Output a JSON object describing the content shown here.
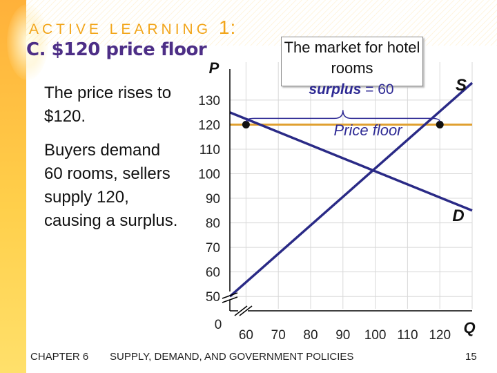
{
  "slide": {
    "kicker": "ACTIVE LEARNING",
    "kicker_number": "1:",
    "title": "C. $120 price floor",
    "paragraphs": [
      "The price rises to $120.",
      "Buyers demand 60 rooms, sellers supply 120, causing a surplus."
    ],
    "callout": "The market for hotel rooms",
    "surplus_prefix": "surplus",
    "surplus_suffix": " = 60",
    "footer_chapter": "CHAPTER 6",
    "footer_topic": "SUPPLY, DEMAND, AND GOVERNMENT POLICIES",
    "page_number": "15"
  },
  "colors": {
    "curve": "#2a2a86",
    "price_floor": "#e0a030",
    "kicker": "#f2a51a",
    "title": "#4d2e86",
    "grid": "#d8d8d8"
  },
  "chart_data": {
    "type": "line",
    "ylabel": "P",
    "xlabel": "Q",
    "origin_label": "0",
    "x_ticks": [
      60,
      70,
      80,
      90,
      100,
      110,
      120
    ],
    "y_ticks": [
      50,
      60,
      70,
      80,
      90,
      100,
      110,
      120,
      130
    ],
    "xlim": [
      55,
      130
    ],
    "ylim": [
      45,
      137
    ],
    "axis_breaks": true,
    "grid": true,
    "series": [
      {
        "name": "S",
        "x": [
          55,
          130
        ],
        "y": [
          50,
          137
        ]
      },
      {
        "name": "D",
        "x": [
          55,
          130
        ],
        "y": [
          125,
          85
        ]
      }
    ],
    "price_floor": {
      "label": "Price floor",
      "value": 120
    },
    "points": [
      {
        "x": 60,
        "y": 120
      },
      {
        "x": 120,
        "y": 120
      }
    ],
    "surplus": {
      "from": 60,
      "to": 120,
      "value": 60
    }
  }
}
